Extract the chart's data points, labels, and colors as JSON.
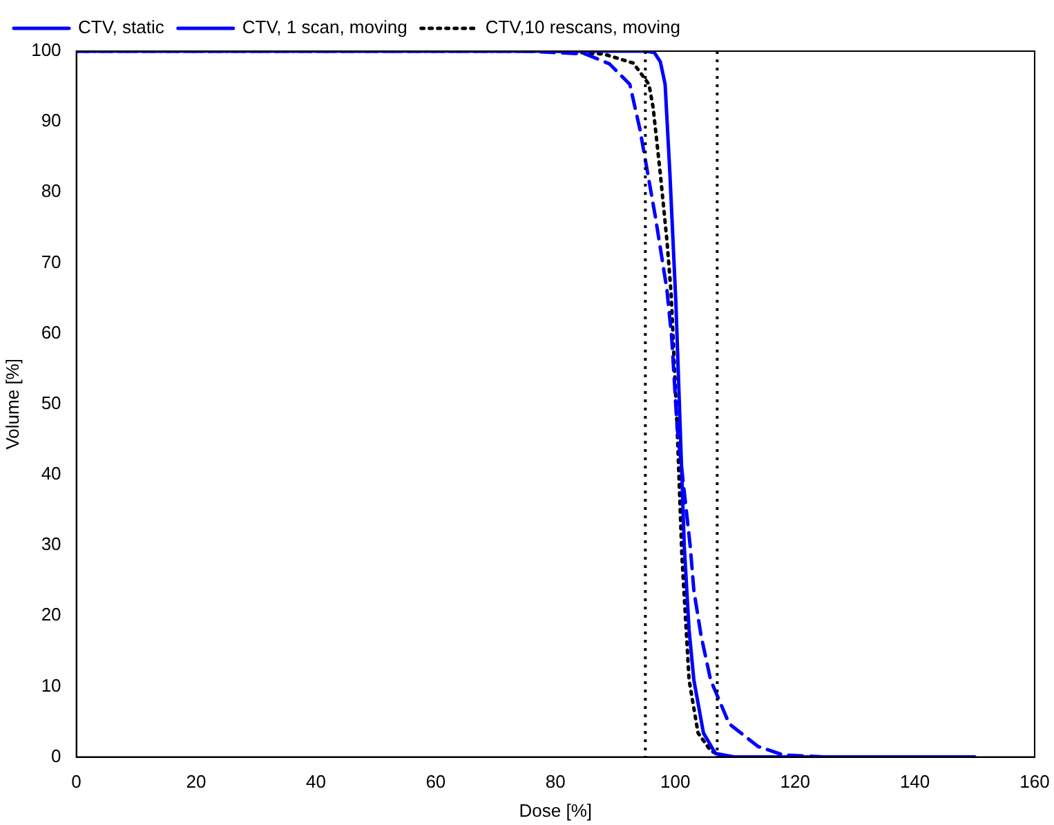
{
  "chart_data": {
    "type": "line",
    "xlabel": "Dose [%]",
    "ylabel": "Volume [%]",
    "xlim": [
      0,
      160
    ],
    "ylim": [
      0,
      100
    ],
    "xticks": [
      0,
      20,
      40,
      60,
      80,
      100,
      120,
      140,
      160
    ],
    "yticks": [
      0,
      10,
      20,
      30,
      40,
      50,
      60,
      70,
      80,
      90,
      100
    ],
    "grid": false,
    "legend": "top left",
    "marker": "none",
    "series": [
      {
        "name": "CTV, static",
        "color": "#0000ff",
        "line_style": "solid",
        "x": [
          0,
          95,
          96.5,
          97.5,
          98.3,
          99.1,
          100.1,
          101.5,
          102.3,
          103.1,
          104.7,
          106.7,
          110,
          150
        ],
        "values": [
          100,
          100,
          99.8,
          98.5,
          95.3,
          82.6,
          64.3,
          29.8,
          18,
          10.9,
          3.4,
          0.5,
          0,
          0
        ]
      },
      {
        "name": "CTV, 1 scan, moving",
        "color": "#0000ff",
        "line_style": "dashed",
        "x": [
          0,
          75,
          85,
          89,
          92.4,
          94.1,
          96.7,
          98.6,
          99.4,
          100.3,
          102.5,
          103.1,
          104.3,
          105.9,
          109,
          113.8,
          118,
          125,
          130
        ],
        "values": [
          100,
          100,
          99.6,
          98.2,
          95.3,
          88.9,
          76.4,
          66.2,
          59.4,
          46.8,
          29.8,
          23.6,
          17.2,
          10.9,
          4.7,
          1.5,
          0.3,
          0,
          0
        ]
      },
      {
        "name": "CTV,10 rescans, moving",
        "color": "#000000",
        "line_style": "dotted",
        "x": [
          0,
          80,
          88,
          93,
          95.6,
          96.3,
          97.5,
          98.6,
          99.3,
          100.3,
          101.1,
          102.3,
          103.8,
          105.9,
          108,
          130
        ],
        "values": [
          100,
          100,
          99.6,
          98.3,
          95.3,
          92,
          82.6,
          73.2,
          65.7,
          46.8,
          28.5,
          10.9,
          3.4,
          0.9,
          0,
          0
        ]
      }
    ],
    "ref_lines": [
      {
        "axis": "x",
        "value": 95,
        "color": "#000000",
        "line_style": "dotted"
      },
      {
        "axis": "x",
        "value": 107,
        "color": "#000000",
        "line_style": "dotted"
      }
    ]
  }
}
